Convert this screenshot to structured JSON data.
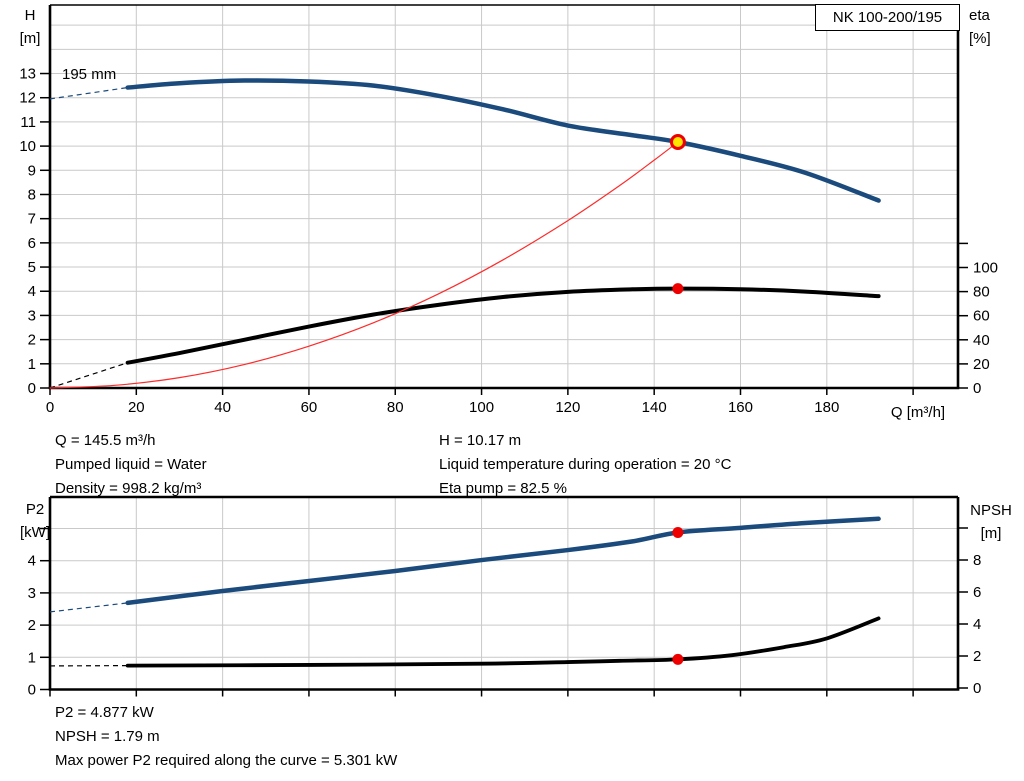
{
  "panel_title": "NK 100-200/195",
  "colors": {
    "curve_blue": "#1b4a7d",
    "curve_black": "#000000",
    "system_curve_red": "#ff2a2a",
    "marker_red": "#ee0000",
    "marker_yellow": "#ffe500",
    "grid": "#c9c9c9",
    "frame": "#000000"
  },
  "chart_data": [
    {
      "name": "head-efficiency-chart",
      "type": "line",
      "box_label": "NK 100-200/195",
      "annotation": "195 mm",
      "grid": "on",
      "legend": "none",
      "x_range": [
        0,
        210
      ],
      "left_range": [
        0,
        15.8
      ],
      "right_range": [
        0,
        316
      ],
      "x_axis": {
        "title": "Q [m³/h]",
        "ticks": [
          0,
          20,
          40,
          60,
          80,
          100,
          120,
          140,
          160,
          180,
          200
        ],
        "labels": [
          0,
          20,
          40,
          60,
          80,
          100,
          120,
          140,
          160,
          180
        ],
        "grid": [
          20,
          40,
          60,
          80,
          100,
          120,
          140,
          160,
          180,
          200
        ]
      },
      "left_axis": {
        "title": [
          "H",
          "[m]"
        ],
        "ticks": [
          0,
          1,
          2,
          3,
          4,
          5,
          6,
          7,
          8,
          9,
          10,
          11,
          12,
          13
        ],
        "labels": [
          0,
          1,
          2,
          3,
          4,
          5,
          6,
          7,
          8,
          9,
          10,
          11,
          12,
          13
        ],
        "grid": [
          1,
          2,
          3,
          4,
          5,
          6,
          7,
          8,
          9,
          10,
          11,
          12,
          13,
          14,
          15
        ]
      },
      "right_axis": {
        "title": [
          "eta",
          "[%]"
        ],
        "ticks": [
          0,
          20,
          40,
          60,
          80,
          100,
          120
        ],
        "labels": [
          0,
          20,
          40,
          60,
          80,
          100
        ]
      },
      "series": [
        {
          "name": "head-curve-195mm",
          "color_key": "curve_blue",
          "width": 4.5,
          "axis": "left",
          "dash_lead": {
            "x": [
              0,
              18
            ],
            "y": [
              11.95,
              12.42
            ]
          },
          "x": [
            18,
            30,
            45,
            60,
            75,
            90,
            105,
            120,
            135,
            145.5,
            160,
            175,
            192
          ],
          "y": [
            12.42,
            12.6,
            12.71,
            12.67,
            12.5,
            12.08,
            11.52,
            10.85,
            10.45,
            10.17,
            9.6,
            8.9,
            7.75
          ]
        },
        {
          "name": "efficiency-curve",
          "color_key": "curve_black",
          "width": 4,
          "axis": "right",
          "dash_lead": {
            "x": [
              0,
              18
            ],
            "y": [
              0,
              21
            ]
          },
          "x": [
            18,
            30,
            45,
            60,
            75,
            90,
            105,
            120,
            135,
            145.5,
            160,
            175,
            192
          ],
          "y": [
            21,
            29,
            40,
            51,
            61,
            69,
            75.5,
            79.8,
            81.9,
            82.5,
            82,
            80,
            76.2
          ]
        },
        {
          "name": "system-curve",
          "color_key": "system_curve_red",
          "width": 1.2,
          "axis": "left",
          "x": [
            0,
            15,
            30,
            45,
            60,
            75,
            90,
            105,
            120,
            132,
            140,
            145.5
          ],
          "y": [
            0,
            0.11,
            0.43,
            0.97,
            1.73,
            2.7,
            3.89,
            5.3,
            6.92,
            8.37,
            9.42,
            10.17
          ]
        }
      ],
      "points": [
        {
          "name": "duty-point",
          "q": 145.5,
          "v": 10.17,
          "axis": "left",
          "style": "duty"
        },
        {
          "name": "efficiency-point",
          "q": 145.5,
          "v": 82.5,
          "axis": "right",
          "style": "red"
        }
      ]
    },
    {
      "name": "power-npsh-chart",
      "type": "line",
      "grid": "on",
      "legend": "none",
      "x_range": [
        0,
        210
      ],
      "left_range": [
        0,
        6
      ],
      "right_range": [
        0,
        12
      ],
      "x_axis": {
        "title": "",
        "ticks": [
          0,
          20,
          40,
          60,
          80,
          100,
          120,
          140,
          160,
          180,
          200
        ],
        "labels": [],
        "grid": [
          20,
          40,
          60,
          80,
          100,
          120,
          140,
          160,
          180,
          200
        ]
      },
      "left_axis": {
        "title": [
          "P2",
          "[kW]"
        ],
        "ticks": [
          0,
          1,
          2,
          3,
          4,
          5
        ],
        "labels": [
          0,
          1,
          2,
          3,
          4
        ],
        "grid": [
          1,
          2,
          3,
          4,
          5
        ]
      },
      "right_axis": {
        "title": [
          "NPSH",
          "[m]"
        ],
        "ticks": [
          0,
          2,
          4,
          6,
          8,
          10
        ],
        "labels": [
          0,
          2,
          4,
          6,
          8
        ]
      },
      "series": [
        {
          "name": "p2-curve",
          "color_key": "curve_blue",
          "width": 4.5,
          "axis": "left",
          "dash_lead": {
            "x": [
              0,
              18
            ],
            "y": [
              2.41,
              2.69
            ]
          },
          "x": [
            18,
            40,
            60,
            80,
            100,
            120,
            135,
            145.5,
            160,
            175,
            192
          ],
          "y": [
            2.69,
            3.06,
            3.37,
            3.68,
            4.02,
            4.33,
            4.6,
            4.877,
            5.02,
            5.17,
            5.301
          ]
        },
        {
          "name": "npsh-curve",
          "color_key": "curve_black",
          "width": 3.8,
          "axis": "right",
          "dash_lead": {
            "x": [
              0,
              18
            ],
            "y": [
              1.38,
              1.4
            ]
          },
          "x": [
            18,
            60,
            100,
            120,
            132,
            145.5,
            158,
            170,
            180,
            192
          ],
          "y": [
            1.4,
            1.44,
            1.52,
            1.62,
            1.7,
            1.79,
            2.05,
            2.55,
            3.1,
            4.35
          ]
        }
      ],
      "points": [
        {
          "name": "p2-point",
          "q": 145.5,
          "v": 4.877,
          "axis": "left",
          "style": "red"
        },
        {
          "name": "npsh-point",
          "q": 145.5,
          "v": 1.79,
          "axis": "right",
          "style": "red"
        }
      ]
    }
  ],
  "info_top": {
    "left": [
      "Q = 145.5 m³/h",
      "Pumped liquid = Water",
      "Density = 998.2 kg/m³"
    ],
    "right": [
      "H = 10.17 m",
      "Liquid temperature during operation = 20 °C",
      "Eta pump = 82.5 %"
    ]
  },
  "info_bottom": [
    "P2 = 4.877 kW",
    "NPSH = 1.79 m",
    "Max power P2 required along the curve = 5.301 kW"
  ]
}
